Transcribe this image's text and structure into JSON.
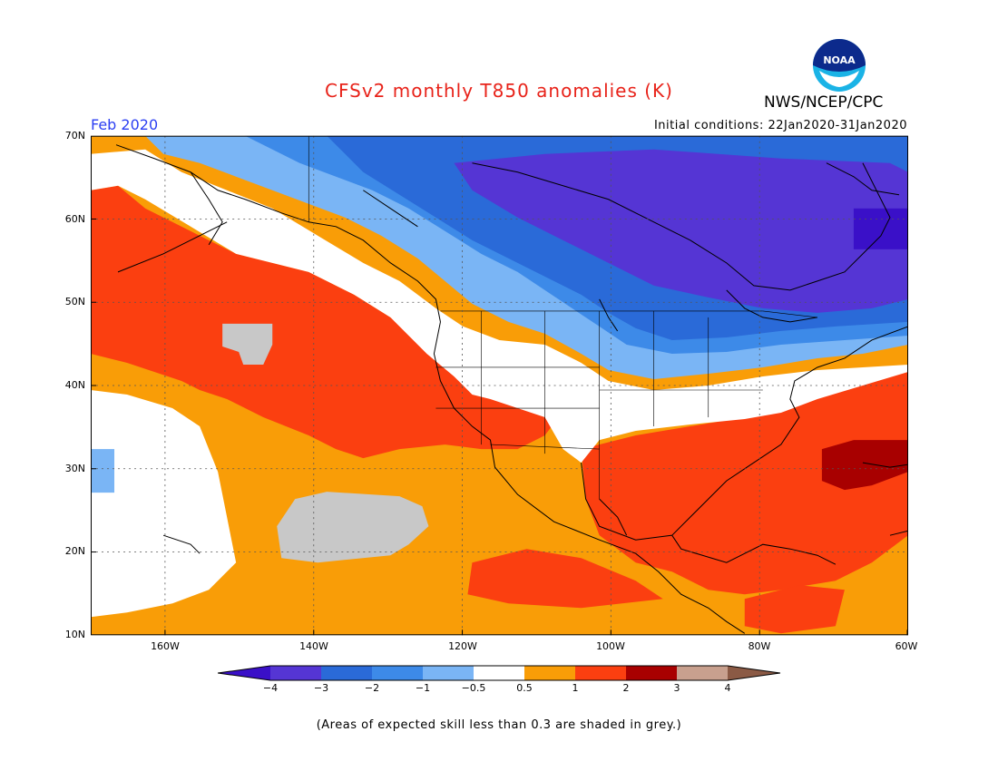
{
  "title": "CFSv2 monthly T850 anomalies (K)",
  "agency": "NWS/NCEP/CPC",
  "logo_text": "NOAA",
  "month_label": "Feb 2020",
  "initial_conditions": "Initial conditions: 22Jan2020-31Jan2020",
  "footnote": "(Areas of expected skill less than 0.3 are shaded in grey.)",
  "lat_labels": [
    "70N",
    "60N",
    "50N",
    "40N",
    "30N",
    "20N",
    "10N"
  ],
  "lon_labels": [
    "160W",
    "140W",
    "120W",
    "100W",
    "80W",
    "60W"
  ],
  "colorbar": {
    "labels": [
      "−4",
      "−3",
      "−2",
      "−1",
      "−0.5",
      "0.5",
      "1",
      "2",
      "3",
      "4"
    ],
    "colors": [
      "#3a10c8",
      "#5535d4",
      "#2a6ad8",
      "#3d8ae8",
      "#7ab5f5",
      "#ffffff",
      "#f99d07",
      "#fb3f10",
      "#a80000",
      "#c8a08e",
      "#8b5a45"
    ],
    "skill_grey": "#c8c8c8"
  }
}
